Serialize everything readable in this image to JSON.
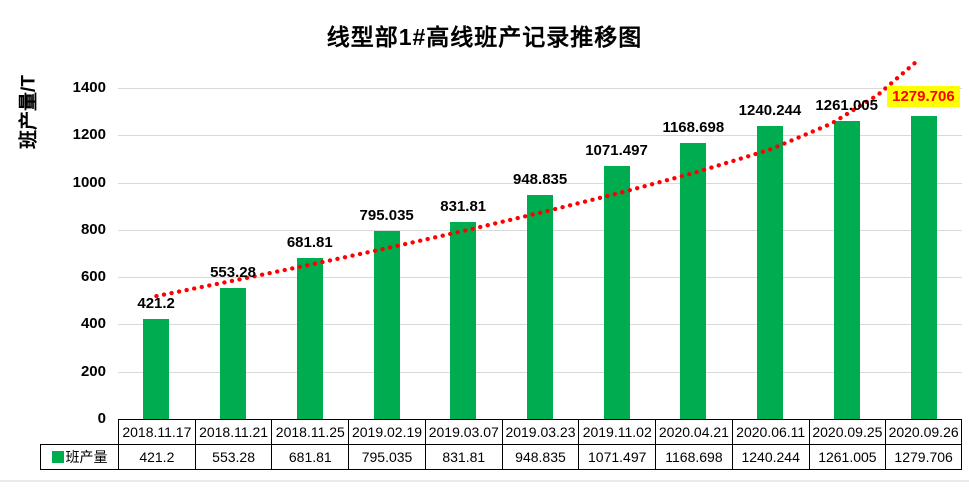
{
  "chart_data": {
    "type": "bar",
    "title": "线型部1#高线班产记录推移图",
    "ylabel": "班产量/T",
    "series_name": "班产量",
    "categories": [
      "2018.11.17",
      "2018.11.21",
      "2018.11.25",
      "2019.02.19",
      "2019.03.07",
      "2019.03.23",
      "2019.11.02",
      "2020.04.21",
      "2020.06.11",
      "2020.09.25",
      "2020.09.26"
    ],
    "values": [
      421.2,
      553.28,
      681.81,
      795.035,
      831.81,
      948.835,
      1071.497,
      1168.698,
      1240.244,
      1261.005,
      1279.706
    ],
    "value_labels": [
      "421.2",
      "553.28",
      "681.81",
      "795.035",
      "831.81",
      "948.835",
      "1071.497",
      "1168.698",
      "1240.244",
      "1261.005",
      "1279.706"
    ],
    "y_ticks": [
      "0",
      "200",
      "400",
      "600",
      "800",
      "1000",
      "1200",
      "1400"
    ],
    "y_tick_values": [
      0,
      200,
      400,
      600,
      800,
      1000,
      1200,
      1400
    ],
    "ylim": [
      0,
      1500
    ],
    "grid": true,
    "legend_position": "bottom-table",
    "bar_color": "#00AC50",
    "grid_color": "#D9D9D9",
    "table_border_color": "#000000",
    "trendline": {
      "style": "dotted",
      "color": "#FF0000",
      "points": [
        [
          0,
          520
        ],
        [
          1,
          585
        ],
        [
          2,
          652
        ],
        [
          3,
          722
        ],
        [
          4,
          795
        ],
        [
          5,
          872
        ],
        [
          6,
          953
        ],
        [
          7,
          1040
        ],
        [
          8,
          1140
        ],
        [
          8.8,
          1250
        ],
        [
          9.4,
          1370
        ],
        [
          9.9,
          1510
        ]
      ]
    },
    "highlight_last": {
      "index": 10,
      "text_color": "#FF0000",
      "bg_color": "#FFFF00"
    }
  }
}
